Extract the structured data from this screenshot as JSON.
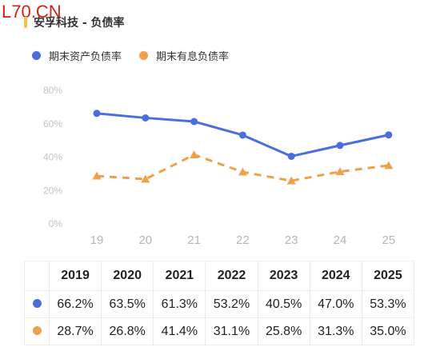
{
  "watermark": "L70.CN",
  "title": "安孚科技 - 负债率",
  "colors": {
    "asset": "#4a6fdc",
    "interest": "#f0a04b",
    "accent": "#f2c14e"
  },
  "chart_data": {
    "type": "line",
    "x": [
      "19",
      "20",
      "21",
      "22",
      "23",
      "24",
      "25"
    ],
    "ylim": [
      0,
      80
    ],
    "yticks": [
      "0%",
      "20%",
      "40%",
      "60%",
      "80%"
    ],
    "grid": false,
    "legend_position": "top-left",
    "series": [
      {
        "name": "期末资产负债率",
        "values": [
          66.2,
          63.5,
          61.3,
          53.2,
          40.5,
          47.0,
          53.3
        ],
        "style": "solid",
        "marker": "circle",
        "color": "#4a6fdc"
      },
      {
        "name": "期末有息负债率",
        "values": [
          28.7,
          26.8,
          41.4,
          31.1,
          25.8,
          31.3,
          35.0
        ],
        "style": "dashed",
        "marker": "triangle",
        "color": "#f0a04b"
      }
    ]
  },
  "table": {
    "years": [
      "2019",
      "2020",
      "2021",
      "2022",
      "2023",
      "2024",
      "2025"
    ],
    "rows": [
      {
        "color": "#4a6fdc",
        "values": [
          "66.2%",
          "63.5%",
          "61.3%",
          "53.2%",
          "40.5%",
          "47.0%",
          "53.3%"
        ]
      },
      {
        "color": "#f0a04b",
        "values": [
          "28.7%",
          "26.8%",
          "41.4%",
          "31.1%",
          "25.8%",
          "31.3%",
          "35.0%"
        ]
      }
    ]
  }
}
